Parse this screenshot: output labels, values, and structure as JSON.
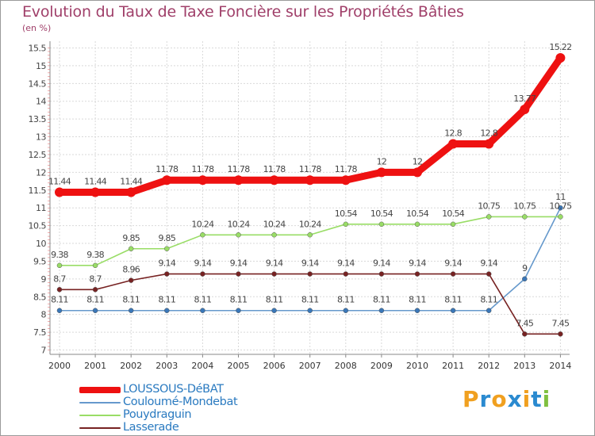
{
  "title": "Evolution du Taux de Taxe Foncière sur les Propriétés Bâties",
  "unit": "(en %)",
  "logo": {
    "text": "Proxiti",
    "letters": [
      "P",
      "r",
      "o",
      "x",
      "i",
      "t",
      "i"
    ],
    "colors": [
      "#f0a020",
      "#2a8ad0",
      "#f0a020",
      "#2a8ad0",
      "#f0a020",
      "#2a8ad0",
      "#80c040"
    ]
  },
  "chart_data": {
    "type": "line",
    "title": "Evolution du Taux de Taxe Foncière sur les Propriétés Bâties",
    "ylabel": "(en %)",
    "xlabel": "",
    "ylim": [
      7,
      15.5
    ],
    "yticks": [
      7,
      7.5,
      8,
      8.5,
      9,
      9.5,
      10,
      10.5,
      11,
      11.5,
      12,
      12.5,
      13,
      13.5,
      14,
      14.5,
      15,
      15.5
    ],
    "categories": [
      "2000",
      "2001",
      "2002",
      "2003",
      "2004",
      "2005",
      "2006",
      "2007",
      "2008",
      "2009",
      "2010",
      "2011",
      "2012",
      "2013",
      "2014"
    ],
    "grid": true,
    "series": [
      {
        "name": "LOUSSOUS-DéBAT",
        "color": "#ee1111",
        "marker": "#ee1111",
        "values": [
          11.44,
          11.44,
          11.44,
          11.78,
          11.78,
          11.78,
          11.78,
          11.78,
          11.78,
          12,
          12,
          12.8,
          12.8,
          13.77,
          15.22
        ],
        "labels": [
          "11.44",
          "11.44",
          "11.44",
          "11.78",
          "11.78",
          "11.78",
          "11.78",
          "11.78",
          "11.78",
          "12",
          "12",
          "12.8",
          "12.8",
          "13.77",
          "15.22"
        ]
      },
      {
        "name": "Couloumé-Mondebat",
        "color": "#6699cc",
        "marker": "#3a77b8",
        "values": [
          8.11,
          8.11,
          8.11,
          8.11,
          8.11,
          8.11,
          8.11,
          8.11,
          8.11,
          8.11,
          8.11,
          8.11,
          8.11,
          9,
          11
        ],
        "labels": [
          "8.11",
          "8.11",
          "8.11",
          "8.11",
          "8.11",
          "8.11",
          "8.11",
          "8.11",
          "8.11",
          "8.11",
          "8.11",
          "8.11",
          "8.11",
          "9",
          "11"
        ]
      },
      {
        "name": "Pouydraguin",
        "color": "#99dd66",
        "marker": "#99dd66",
        "values": [
          9.38,
          9.38,
          9.85,
          9.85,
          10.24,
          10.24,
          10.24,
          10.24,
          10.54,
          10.54,
          10.54,
          10.54,
          10.75,
          10.75,
          10.75
        ],
        "labels": [
          "9.38",
          "9.38",
          "9.85",
          "9.85",
          "10.24",
          "10.24",
          "10.24",
          "10.24",
          "10.54",
          "10.54",
          "10.54",
          "10.54",
          "10.75",
          "10.75",
          "10.75"
        ]
      },
      {
        "name": "Lasserade",
        "color": "#772222",
        "marker": "#772222",
        "values": [
          8.7,
          8.7,
          8.96,
          9.14,
          9.14,
          9.14,
          9.14,
          9.14,
          9.14,
          9.14,
          9.14,
          9.14,
          9.14,
          7.45,
          7.45
        ],
        "labels": [
          "8.7",
          "8.7",
          "8.96",
          "9.14",
          "9.14",
          "9.14",
          "9.14",
          "9.14",
          "9.14",
          "9.14",
          "9.14",
          "9.14",
          "9.14",
          "7.45",
          "7.45"
        ]
      }
    ]
  }
}
